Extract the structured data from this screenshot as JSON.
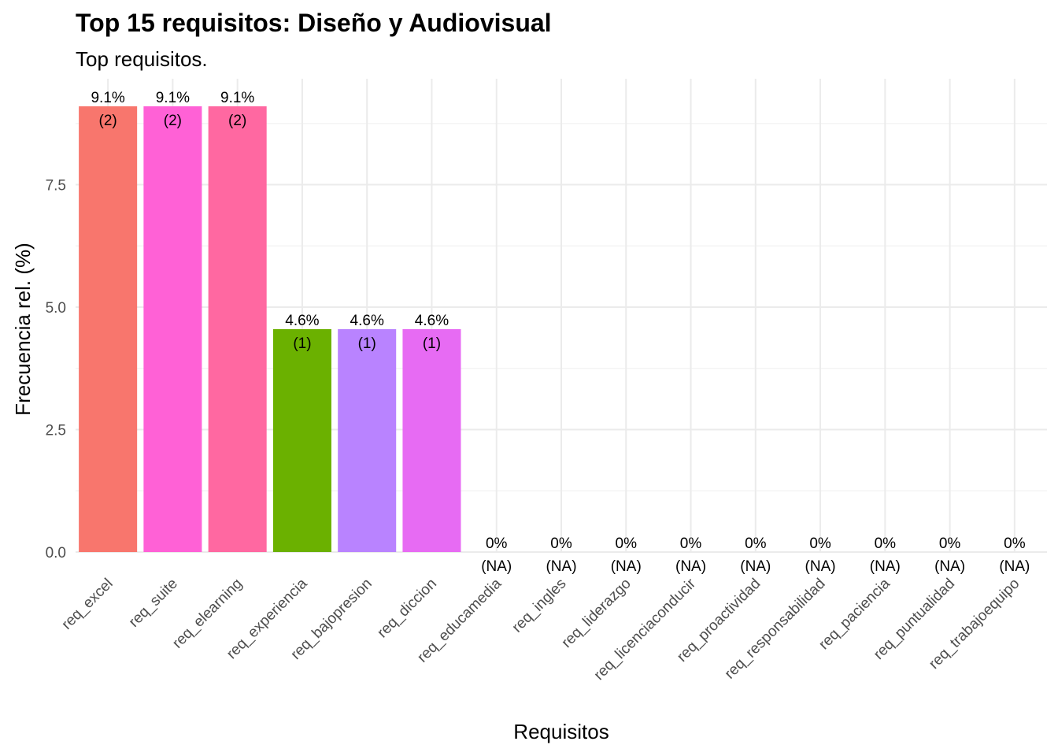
{
  "chart_data": {
    "type": "bar",
    "title": "Top 15 requisitos: Diseño y Audiovisual",
    "subtitle": "Top requisitos.",
    "xlabel": "Requisitos",
    "ylabel": "Frecuencia rel. (%)",
    "ylim": [
      0,
      9.1
    ],
    "yticks": [
      0.0,
      2.5,
      5.0,
      7.5
    ],
    "ytick_labels": [
      "0.0",
      "2.5",
      "5.0",
      "7.5"
    ],
    "grid": true,
    "legend": "none",
    "categories": [
      "req_excel",
      "req_suite",
      "req_elearning",
      "req_experiencia",
      "req_bajopresion",
      "req_diccion",
      "req_educamedia",
      "req_ingles",
      "req_liderazgo",
      "req_licenciaconducir",
      "req_proactividad",
      "req_responsabilidad",
      "req_paciencia",
      "req_puntualidad",
      "req_trabajoequipo"
    ],
    "values": [
      9.1,
      9.1,
      9.1,
      4.55,
      4.55,
      4.55,
      0,
      0,
      0,
      0,
      0,
      0,
      0,
      0,
      0
    ],
    "percent_labels": [
      "9.1%",
      "9.1%",
      "9.1%",
      "4.6%",
      "4.6%",
      "4.6%",
      "0%",
      "0%",
      "0%",
      "0%",
      "0%",
      "0%",
      "0%",
      "0%",
      "0%"
    ],
    "count_labels": [
      "(2)",
      "(2)",
      "(2)",
      "(1)",
      "(1)",
      "(1)",
      "(NA)",
      "(NA)",
      "(NA)",
      "(NA)",
      "(NA)",
      "(NA)",
      "(NA)",
      "(NA)",
      "(NA)"
    ],
    "colors": [
      "#F8766D",
      "#FF61D6",
      "#FF68A1",
      "#6BB100",
      "#B983FF",
      "#E76BF3",
      "#E76BF3",
      "#E76BF3",
      "#E76BF3",
      "#E76BF3",
      "#E76BF3",
      "#E76BF3",
      "#E76BF3",
      "#E76BF3",
      "#E76BF3"
    ]
  }
}
